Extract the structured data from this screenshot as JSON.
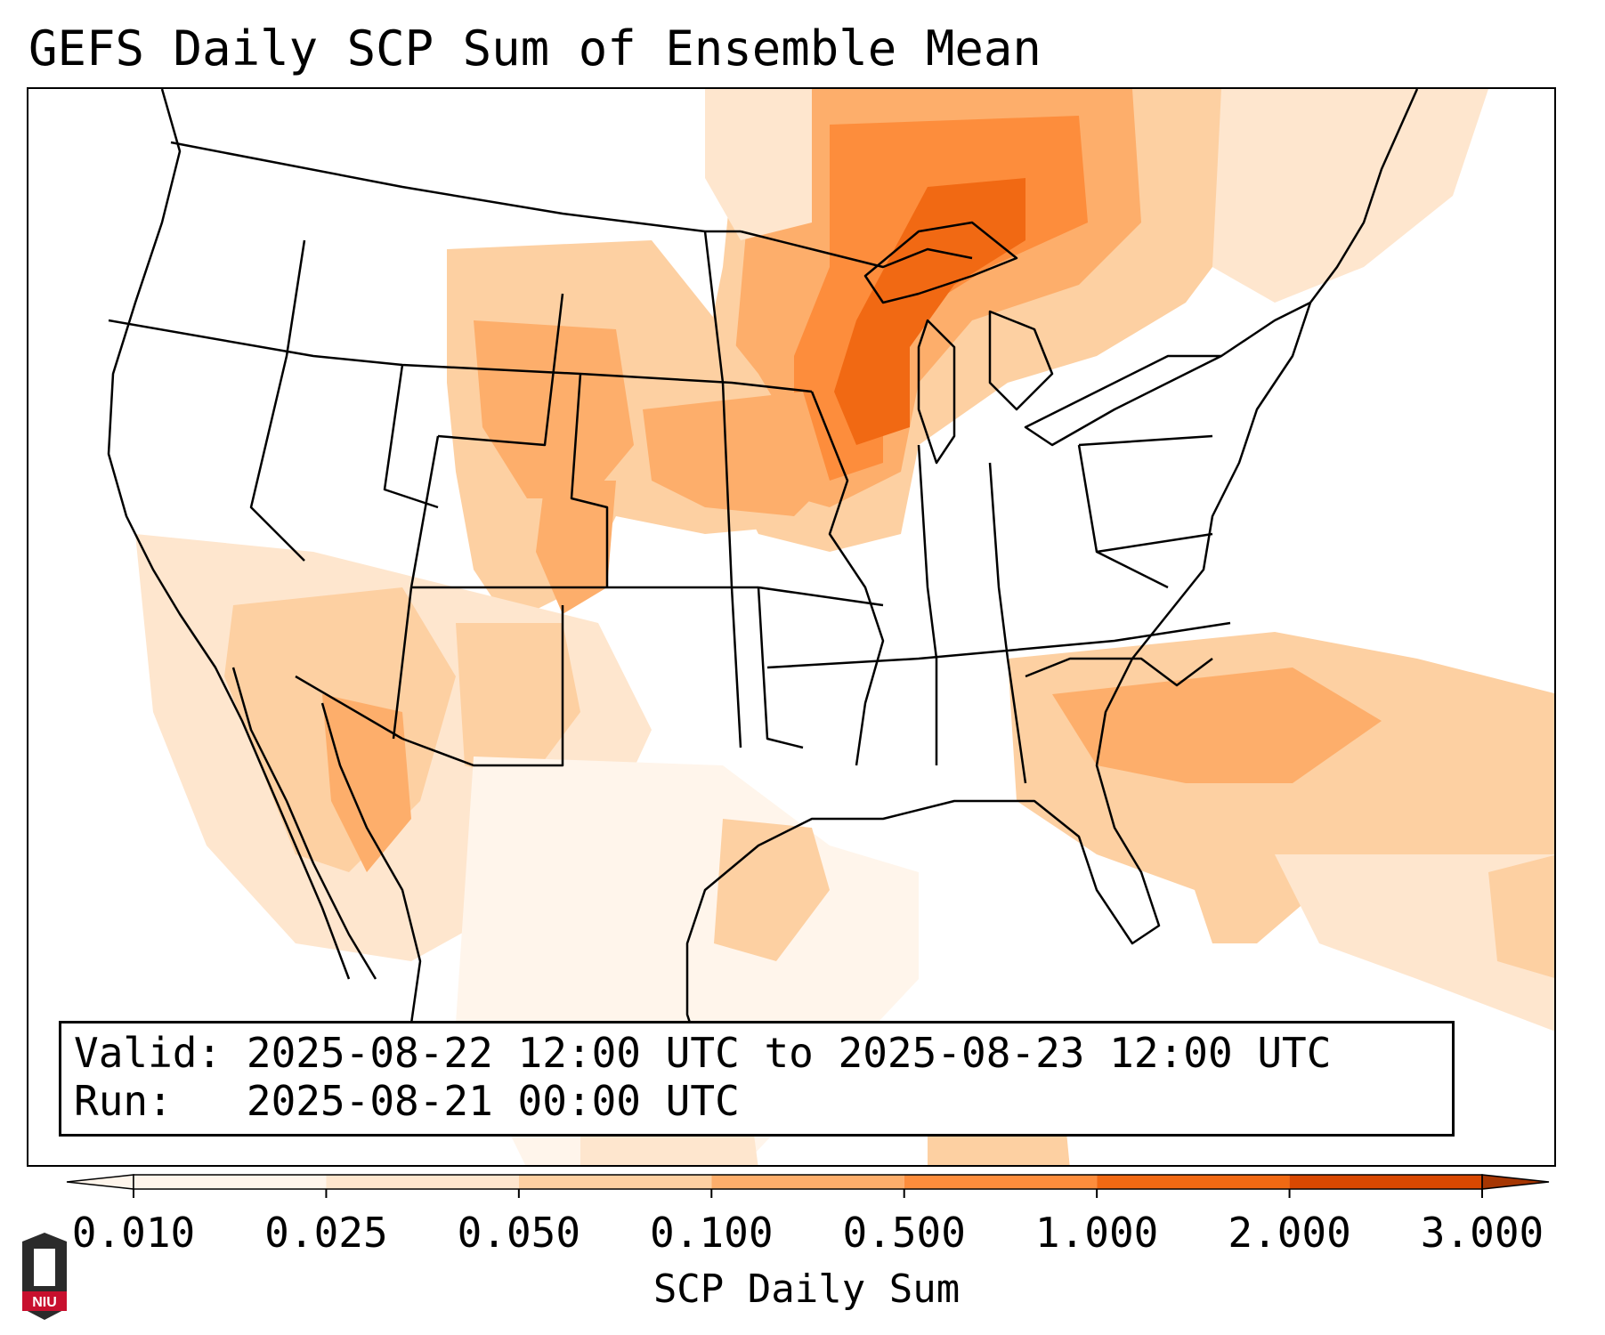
{
  "title": "GEFS Daily SCP Sum of Ensemble Mean",
  "info": {
    "valid_label": "Valid:",
    "valid_text": "2025-08-22 12:00 UTC to 2025-08-23 12:00 UTC",
    "run_label": "Run:",
    "run_text": "2025-08-21 00:00 UTC"
  },
  "colorbar": {
    "label": "SCP Daily Sum",
    "ticks": [
      "0.010",
      "0.025",
      "0.050",
      "0.100",
      "0.500",
      "1.000",
      "2.000",
      "3.000"
    ],
    "colors": [
      "#fff5eb",
      "#fee6ce",
      "#fdd0a2",
      "#fdae6b",
      "#fd8d3c",
      "#f16913",
      "#d94801",
      "#a63603"
    ],
    "extend": "both"
  },
  "logo": {
    "text": "NIU",
    "colors": {
      "shield": "#2b2b2b",
      "band": "#c8102e"
    }
  },
  "map": {
    "domain": "CONUS",
    "variable": "SCP Daily Sum",
    "boundaries_color": "#000000"
  }
}
